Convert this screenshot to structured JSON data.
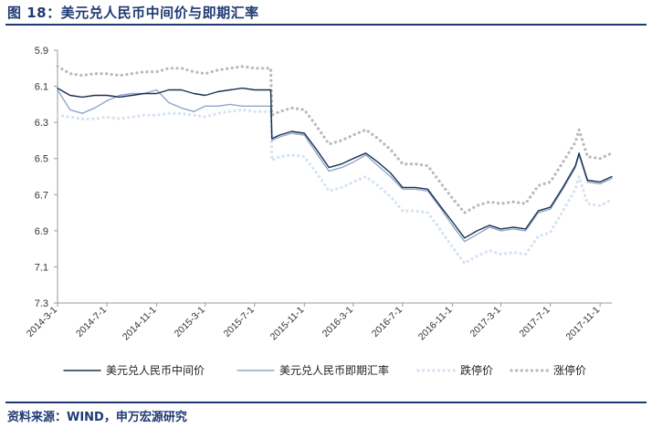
{
  "title": "图 18：美元兑人民币中间价与即期汇率",
  "source": "资料来源：WIND，申万宏源研究",
  "colors": {
    "mid": "#1b2f52",
    "spot": "#8fa7c9",
    "lower": "#d5e3f0",
    "upper": "#b9b9b9",
    "accent": "#1f3a73"
  },
  "chart_data": {
    "type": "line",
    "y_inverted": true,
    "ylim": [
      5.9,
      7.3
    ],
    "yticks": [
      "5.9",
      "6.1",
      "6.3",
      "6.5",
      "6.7",
      "6.9",
      "7.1",
      "7.3"
    ],
    "xlim": [
      "2014-03-01",
      "2017-11-30"
    ],
    "xticks": [
      "2014-3-1",
      "2014-7-1",
      "2014-11-1",
      "2015-3-1",
      "2015-7-1",
      "2015-11-1",
      "2016-3-1",
      "2016-7-1",
      "2016-11-1",
      "2017-3-1",
      "2017-7-1",
      "2017-11-1"
    ],
    "grid": false,
    "legend_position": "bottom",
    "x": [
      "2014-03-01",
      "2014-04-01",
      "2014-05-01",
      "2014-06-01",
      "2014-07-01",
      "2014-08-01",
      "2014-09-01",
      "2014-10-01",
      "2014-11-01",
      "2014-12-01",
      "2015-01-01",
      "2015-02-01",
      "2015-03-01",
      "2015-04-01",
      "2015-05-01",
      "2015-06-01",
      "2015-07-01",
      "2015-08-10",
      "2015-08-13",
      "2015-09-01",
      "2015-10-01",
      "2015-11-01",
      "2015-12-01",
      "2016-01-01",
      "2016-02-01",
      "2016-03-01",
      "2016-04-01",
      "2016-05-01",
      "2016-06-01",
      "2016-07-01",
      "2016-08-01",
      "2016-09-01",
      "2016-10-01",
      "2016-11-01",
      "2016-12-01",
      "2017-01-01",
      "2017-02-01",
      "2017-03-01",
      "2017-04-01",
      "2017-05-01",
      "2017-06-01",
      "2017-07-01",
      "2017-08-01",
      "2017-09-01",
      "2017-09-10",
      "2017-10-01",
      "2017-11-01",
      "2017-11-30"
    ],
    "series": [
      {
        "name": "美元兑人民币中间价",
        "style": "solid",
        "values": [
          6.11,
          6.15,
          6.16,
          6.15,
          6.15,
          6.16,
          6.15,
          6.14,
          6.14,
          6.12,
          6.12,
          6.14,
          6.15,
          6.13,
          6.12,
          6.11,
          6.12,
          6.12,
          6.39,
          6.37,
          6.35,
          6.36,
          6.45,
          6.55,
          6.53,
          6.5,
          6.47,
          6.52,
          6.58,
          6.66,
          6.66,
          6.67,
          6.76,
          6.85,
          6.94,
          6.9,
          6.87,
          6.89,
          6.88,
          6.89,
          6.79,
          6.77,
          6.66,
          6.54,
          6.47,
          6.62,
          6.63,
          6.6
        ]
      },
      {
        "name": "美元兑人民币即期汇率",
        "style": "solid",
        "values": [
          6.12,
          6.23,
          6.25,
          6.22,
          6.18,
          6.15,
          6.14,
          6.14,
          6.12,
          6.19,
          6.22,
          6.24,
          6.21,
          6.21,
          6.2,
          6.21,
          6.21,
          6.21,
          6.4,
          6.38,
          6.36,
          6.37,
          6.47,
          6.57,
          6.55,
          6.52,
          6.48,
          6.54,
          6.6,
          6.67,
          6.67,
          6.68,
          6.77,
          6.87,
          6.96,
          6.92,
          6.88,
          6.9,
          6.89,
          6.9,
          6.8,
          6.78,
          6.67,
          6.55,
          6.48,
          6.63,
          6.64,
          6.61
        ]
      },
      {
        "name": "跌停价",
        "style": "dotted",
        "values": [
          6.26,
          6.27,
          6.28,
          6.28,
          6.27,
          6.28,
          6.27,
          6.26,
          6.26,
          6.25,
          6.25,
          6.26,
          6.27,
          6.25,
          6.24,
          6.23,
          6.24,
          6.24,
          6.51,
          6.49,
          6.48,
          6.49,
          6.58,
          6.68,
          6.66,
          6.63,
          6.6,
          6.65,
          6.71,
          6.79,
          6.79,
          6.8,
          6.89,
          6.99,
          7.08,
          7.04,
          7.01,
          7.03,
          7.02,
          7.03,
          6.93,
          6.91,
          6.79,
          6.67,
          6.6,
          6.75,
          6.76,
          6.73
        ]
      },
      {
        "name": "涨停价",
        "style": "dotted",
        "values": [
          5.99,
          6.03,
          6.04,
          6.03,
          6.03,
          6.04,
          6.03,
          6.02,
          6.02,
          6.0,
          6.0,
          6.02,
          6.03,
          6.01,
          6.0,
          5.99,
          6.0,
          6.0,
          6.26,
          6.24,
          6.22,
          6.23,
          6.32,
          6.42,
          6.4,
          6.37,
          6.34,
          6.39,
          6.45,
          6.53,
          6.53,
          6.54,
          6.63,
          6.72,
          6.8,
          6.76,
          6.74,
          6.75,
          6.74,
          6.75,
          6.65,
          6.63,
          6.52,
          6.41,
          6.34,
          6.49,
          6.5,
          6.47
        ]
      }
    ]
  }
}
